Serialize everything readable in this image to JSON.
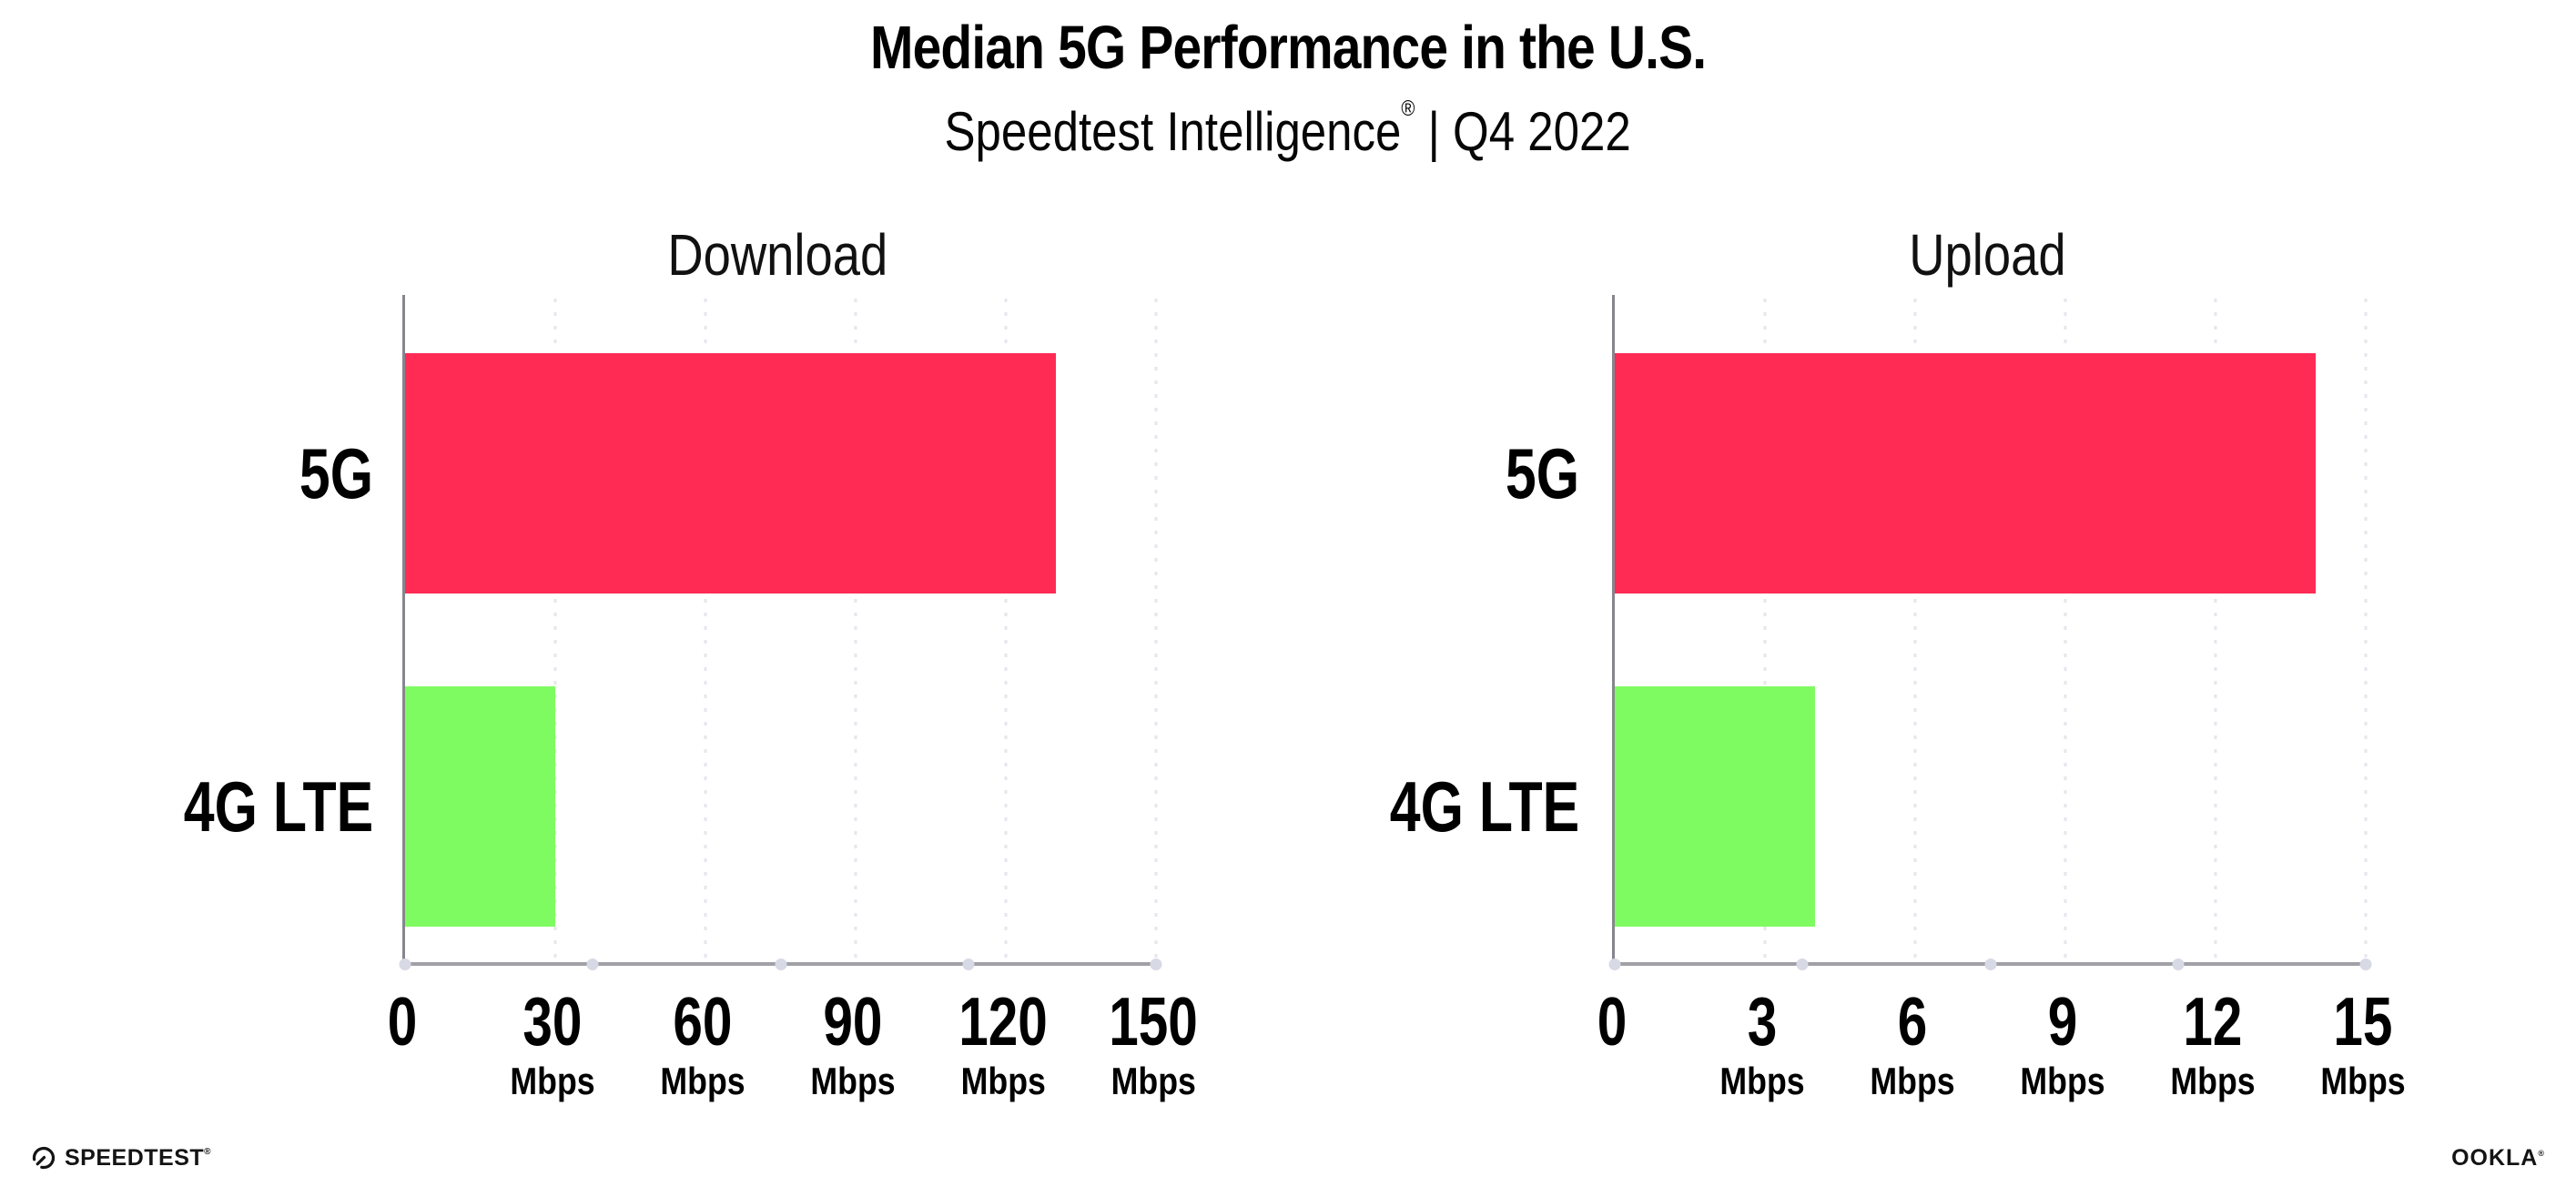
{
  "header": {
    "title": "Median 5G Performance in the U.S.",
    "subtitle_brand": "Speedtest Intelligence",
    "subtitle_reg": "®",
    "subtitle_rest": " | Q4 2022"
  },
  "chart_data": [
    {
      "type": "bar",
      "orientation": "horizontal",
      "title": "Download",
      "categories": [
        "5G",
        "4G LTE"
      ],
      "values": [
        130,
        30
      ],
      "unit": "Mbps",
      "xlim": [
        0,
        150
      ],
      "xticks": [
        0,
        30,
        60,
        90,
        120,
        150
      ],
      "bar_colors": [
        "#ff2b55",
        "#7ffb62"
      ],
      "grid": "dotted-vertical-gridlines",
      "legend": "none"
    },
    {
      "type": "bar",
      "orientation": "horizontal",
      "title": "Upload",
      "categories": [
        "5G",
        "4G LTE"
      ],
      "values": [
        14,
        4
      ],
      "unit": "Mbps",
      "xlim": [
        0,
        15
      ],
      "xticks": [
        0,
        3,
        6,
        9,
        12,
        15
      ],
      "bar_colors": [
        "#ff2b55",
        "#7ffb62"
      ],
      "grid": "dotted-vertical-gridlines",
      "legend": "none"
    }
  ],
  "footer": {
    "speedtest_label": "SPEEDTEST",
    "speedtest_reg": "®",
    "ookla_label": "OOKLA",
    "ookla_reg": "®"
  },
  "colors": {
    "bar_5g": "#ff2b55",
    "bar_4g_lte": "#7ffb62",
    "axis_line": "#a0a0a6",
    "y_axis_line": "#86868e",
    "gridline_dots": "#e6e6ee",
    "axis_tick_dots": "#d7d9e5",
    "text": "#000000"
  }
}
